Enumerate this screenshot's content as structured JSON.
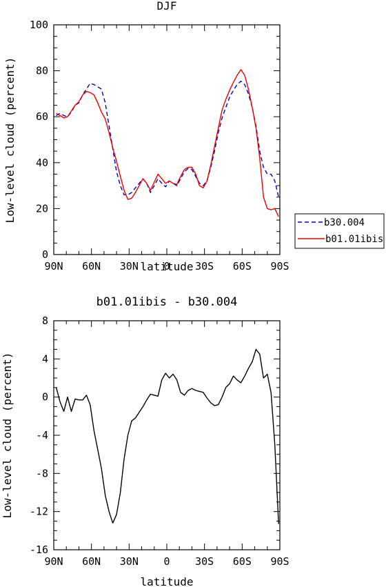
{
  "chart_data": [
    {
      "type": "line",
      "title": "DJF",
      "xlabel": "latitude",
      "ylabel": "Low-level cloud (percent)",
      "x_ticks": [
        "90N",
        "60N",
        "30N",
        "0",
        "30S",
        "60S",
        "90S"
      ],
      "y_ticks": [
        "0",
        "20",
        "40",
        "60",
        "80",
        "100"
      ],
      "xlim": [
        90,
        -90
      ],
      "ylim": [
        0,
        100
      ],
      "legend_position": "right",
      "series": [
        {
          "name": "b30.004",
          "color": "#0000cc",
          "style": "dashed",
          "x": [
            88,
            85,
            82,
            79,
            76,
            73,
            70,
            67,
            64,
            61,
            58,
            55,
            52,
            49,
            46,
            43,
            40,
            37,
            34,
            31,
            28,
            25,
            22,
            19,
            16,
            13,
            10,
            7,
            4,
            1,
            -2,
            -5,
            -8,
            -11,
            -14,
            -17,
            -20,
            -23,
            -26,
            -29,
            -32,
            -35,
            -38,
            -41,
            -44,
            -47,
            -50,
            -53,
            -56,
            -59,
            -62,
            -65,
            -68,
            -71,
            -74,
            -77,
            -80,
            -83,
            -86,
            -89
          ],
          "values": [
            60.5,
            61.5,
            60.5,
            60,
            62,
            65,
            66,
            69.5,
            72,
            74.5,
            74,
            73,
            72,
            66,
            56,
            46,
            36,
            30,
            26,
            26,
            27,
            29,
            31,
            33,
            31,
            27,
            30,
            33,
            31,
            29.5,
            32,
            31,
            30,
            33,
            36,
            37.5,
            37,
            34,
            31,
            30,
            32,
            38,
            45,
            53,
            59.5,
            64,
            68.5,
            71.5,
            74,
            75.5,
            74,
            70,
            64,
            56,
            45,
            38,
            35,
            35,
            32,
            25
          ]
        },
        {
          "name": "b01.01ibis",
          "color": "#ee0000",
          "style": "solid",
          "x": [
            88,
            85,
            82,
            79,
            76,
            73,
            70,
            67,
            64,
            61,
            58,
            55,
            52,
            49,
            46,
            43,
            40,
            37,
            34,
            31,
            28,
            25,
            22,
            19,
            16,
            13,
            10,
            7,
            4,
            1,
            -2,
            -5,
            -8,
            -11,
            -14,
            -17,
            -20,
            -23,
            -26,
            -29,
            -32,
            -35,
            -38,
            -41,
            -44,
            -47,
            -50,
            -53,
            -56,
            -59,
            -62,
            -65,
            -68,
            -71,
            -74,
            -77,
            -80,
            -83,
            -86,
            -89
          ],
          "values": [
            61.5,
            60.5,
            59.5,
            60,
            62.5,
            65,
            66.5,
            69.5,
            71,
            70.5,
            69.5,
            66,
            62,
            59,
            53,
            46.5,
            40.5,
            34,
            28,
            24,
            24.5,
            27,
            30,
            33,
            31,
            28,
            31.5,
            35,
            33,
            31,
            32,
            31,
            30.5,
            34,
            37,
            38,
            38,
            35,
            30,
            29,
            32,
            39,
            47,
            55,
            63,
            67.5,
            71.5,
            75,
            78,
            80.5,
            78,
            72,
            64,
            55,
            42,
            25,
            20,
            19.5,
            20,
            16.5
          ]
        }
      ]
    },
    {
      "type": "line",
      "title": "b01.01ibis - b30.004",
      "xlabel": "latitude",
      "ylabel": "Low-level cloud (percent)",
      "x_ticks": [
        "90N",
        "60N",
        "30N",
        "0",
        "30S",
        "60S",
        "90S"
      ],
      "y_ticks": [
        "8",
        "4",
        "0",
        "-4",
        "-8",
        "-12",
        "-16"
      ],
      "xlim": [
        90,
        -90
      ],
      "ylim": [
        -16,
        8
      ],
      "series": [
        {
          "color": "#000000",
          "style": "solid",
          "x": [
            88,
            85,
            82,
            79,
            76,
            73,
            70,
            67,
            64,
            61,
            58,
            55,
            52,
            49,
            46,
            43,
            40,
            37,
            34,
            31,
            28,
            25,
            22,
            19,
            16,
            13,
            10,
            7,
            4,
            1,
            -2,
            -5,
            -8,
            -11,
            -14,
            -17,
            -20,
            -23,
            -26,
            -29,
            -32,
            -35,
            -38,
            -41,
            -44,
            -47,
            -50,
            -53,
            -56,
            -59,
            -62,
            -65,
            -68,
            -71,
            -74,
            -77,
            -80,
            -83,
            -86,
            -89
          ],
          "values": [
            1,
            -0.5,
            -1.5,
            0,
            -1.5,
            -0.2,
            -0.3,
            -0.3,
            0.2,
            -0.8,
            -3.5,
            -5.5,
            -7.5,
            -10.3,
            -12,
            -13.2,
            -12.3,
            -10,
            -6.5,
            -4,
            -2.5,
            -2.2,
            -1.6,
            -1,
            -0.3,
            0.3,
            0.2,
            0.1,
            1.8,
            2.5,
            2,
            2.4,
            1.8,
            0.5,
            0.2,
            0.7,
            0.9,
            0.7,
            0.6,
            0.5,
            -0.1,
            -0.6,
            -0.9,
            -0.8,
            0,
            1,
            1.4,
            2.2,
            1.8,
            1.5,
            2.2,
            3,
            3.7,
            5,
            4.5,
            2,
            2.4,
            0.5,
            -5,
            -13.3
          ]
        }
      ]
    }
  ]
}
